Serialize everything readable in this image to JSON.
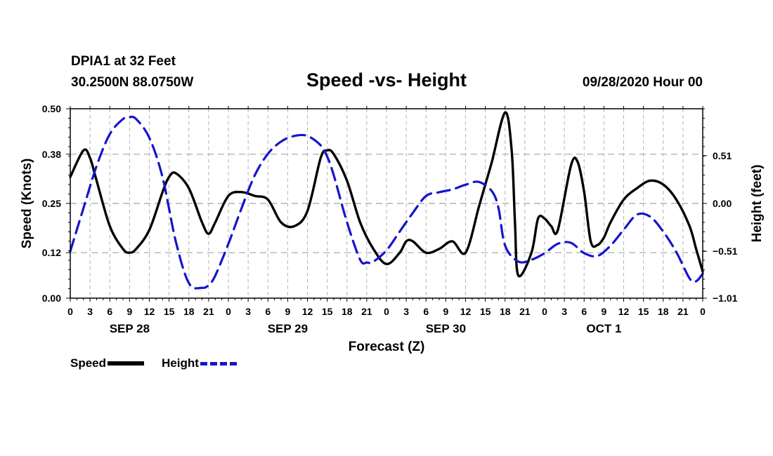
{
  "header": {
    "station": "DPIA1 at 32 Feet",
    "coords": "30.2500N 88.0750W",
    "datetime": "09/28/2020 Hour 00"
  },
  "legend": {
    "speed_label": "Speed",
    "height_label": "Height"
  },
  "colors": {
    "speed": "#000000",
    "height": "#1515cc",
    "grid": "#b4b4b4"
  },
  "chart_data": {
    "type": "line",
    "title": "Speed -vs- Height",
    "xlabel": "Forecast (Z)",
    "ylabel": "Speed (Knots)",
    "y2label": "Height (feet)",
    "x_range": [
      0,
      96
    ],
    "ylim": [
      0,
      0.5
    ],
    "y2lim": [
      -1.01,
      1.01
    ],
    "y_ticks": [
      0.0,
      0.12,
      0.25,
      0.38,
      0.5
    ],
    "y_tick_labels": [
      "0.00",
      "0.12",
      "0.25",
      "0.38",
      "0.50"
    ],
    "y2_ticks": [
      -1.01,
      -0.51,
      0.0,
      0.51
    ],
    "y2_tick_labels": [
      "−1.01",
      "−0.51",
      "0.00",
      "0.51"
    ],
    "x_tick_labels": [
      "0",
      "3",
      "6",
      "9",
      "12",
      "15",
      "18",
      "21",
      "0",
      "3",
      "6",
      "9",
      "12",
      "15",
      "18",
      "21",
      "0",
      "3",
      "6",
      "9",
      "12",
      "15",
      "18",
      "21",
      "0",
      "3",
      "6",
      "9",
      "12",
      "15",
      "18",
      "21",
      "0"
    ],
    "day_labels": [
      {
        "hour": 9,
        "label": "SEP 28"
      },
      {
        "hour": 33,
        "label": "SEP 29"
      },
      {
        "hour": 57,
        "label": "SEP 30"
      },
      {
        "hour": 81,
        "label": "OCT 1"
      }
    ],
    "series": [
      {
        "name": "Speed",
        "axis": "left",
        "x": [
          0,
          2,
          3,
          4,
          6,
          8,
          9,
          10,
          12,
          14,
          15,
          16,
          18,
          20,
          21,
          22,
          24,
          26,
          28,
          30,
          32,
          34,
          36,
          38,
          39,
          40,
          42,
          44,
          46,
          48,
          50,
          51,
          52,
          54,
          56,
          58,
          60,
          62,
          63,
          64,
          66,
          67,
          67.5,
          68,
          70,
          71,
          72,
          73,
          74,
          76,
          77,
          78,
          79,
          80,
          81,
          82,
          84,
          86,
          88,
          90,
          92,
          94,
          95,
          96
        ],
        "values": [
          0.32,
          0.39,
          0.37,
          0.31,
          0.19,
          0.13,
          0.12,
          0.13,
          0.18,
          0.28,
          0.32,
          0.33,
          0.29,
          0.2,
          0.17,
          0.2,
          0.27,
          0.28,
          0.27,
          0.26,
          0.2,
          0.19,
          0.23,
          0.37,
          0.39,
          0.38,
          0.31,
          0.2,
          0.13,
          0.09,
          0.12,
          0.15,
          0.15,
          0.12,
          0.13,
          0.15,
          0.12,
          0.24,
          0.3,
          0.36,
          0.49,
          0.39,
          0.2,
          0.06,
          0.12,
          0.21,
          0.21,
          0.19,
          0.18,
          0.35,
          0.36,
          0.28,
          0.15,
          0.14,
          0.16,
          0.2,
          0.26,
          0.29,
          0.31,
          0.3,
          0.26,
          0.19,
          0.13,
          0.07
        ]
      },
      {
        "name": "Height",
        "axis": "right",
        "x": [
          0,
          2,
          4,
          6,
          8,
          9,
          10,
          12,
          14,
          16,
          18,
          20,
          21,
          22,
          24,
          26,
          28,
          30,
          32,
          34,
          36,
          38,
          39,
          40,
          42,
          44,
          45,
          46,
          48,
          50,
          52,
          54,
          56,
          58,
          60,
          62,
          64,
          65,
          66,
          68,
          70,
          72,
          74,
          76,
          78,
          80,
          82,
          84,
          86,
          88,
          90,
          92,
          94,
          95,
          96
        ],
        "values": [
          -0.51,
          -0.05,
          0.4,
          0.74,
          0.9,
          0.92,
          0.9,
          0.7,
          0.28,
          -0.4,
          -0.85,
          -0.9,
          -0.87,
          -0.77,
          -0.43,
          -0.05,
          0.3,
          0.53,
          0.66,
          0.72,
          0.72,
          0.62,
          0.5,
          0.3,
          -0.2,
          -0.6,
          -0.63,
          -0.62,
          -0.5,
          -0.3,
          -0.1,
          0.08,
          0.12,
          0.15,
          0.2,
          0.23,
          0.13,
          -0.05,
          -0.45,
          -0.62,
          -0.6,
          -0.53,
          -0.43,
          -0.42,
          -0.53,
          -0.56,
          -0.45,
          -0.28,
          -0.12,
          -0.14,
          -0.3,
          -0.52,
          -0.8,
          -0.83,
          -0.75
        ]
      }
    ]
  }
}
